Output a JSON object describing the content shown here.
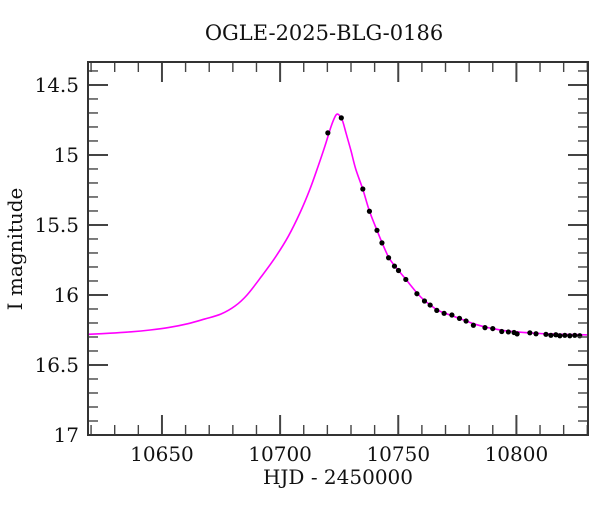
{
  "figure": {
    "title": "OGLE-2025-BLG-0186",
    "background_color": "#ffffff",
    "frame_color": "#333333",
    "text_color": "#111111"
  },
  "chart_data": {
    "type": "line",
    "title": "OGLE-2025-BLG-0186",
    "xlabel": "HJD - 2450000",
    "ylabel": "I magnitude",
    "x_axis": {
      "min": 10618.7,
      "max": 10830.3,
      "major_ticks": [
        10650,
        10700,
        10750,
        10800
      ],
      "tick_labels": [
        "10650",
        "10700",
        "10750",
        "10800"
      ],
      "minor_step": 10
    },
    "y_axis": {
      "inverted": true,
      "top_value": 14.336,
      "bottom_value": 17.0,
      "major_ticks": [
        14.5,
        15,
        15.5,
        16,
        16.5,
        17
      ],
      "tick_labels": [
        "14.5",
        "15",
        "15.5",
        "16",
        "16.5",
        "17"
      ],
      "minor_step": 0.1
    },
    "grid": false,
    "legend": null,
    "event": {
      "baseline_I_mag": 16.29,
      "peak_I_mag": 14.71,
      "peak_time_hjd": 10724.2
    },
    "series": [
      {
        "name": "model",
        "type": "line",
        "color": "#ff00ff",
        "stroke_width": 1.6,
        "points": [
          [
            10618.7,
            16.281
          ],
          [
            10628,
            16.273
          ],
          [
            10637,
            16.263
          ],
          [
            10645,
            16.25
          ],
          [
            10653,
            16.232
          ],
          [
            10661,
            16.205
          ],
          [
            10668,
            16.172
          ],
          [
            10675,
            16.136
          ],
          [
            10681,
            16.078
          ],
          [
            10686,
            16.0
          ],
          [
            10692,
            15.87
          ],
          [
            10698,
            15.73
          ],
          [
            10703.5,
            15.58
          ],
          [
            10708.5,
            15.41
          ],
          [
            10712.5,
            15.25
          ],
          [
            10716,
            15.085
          ],
          [
            10719,
            14.935
          ],
          [
            10721.5,
            14.8
          ],
          [
            10723.2,
            14.728
          ],
          [
            10724.2,
            14.708
          ],
          [
            10725.3,
            14.722
          ],
          [
            10726.5,
            14.76
          ],
          [
            10728,
            14.85
          ],
          [
            10730,
            14.97
          ],
          [
            10732,
            15.1
          ],
          [
            10735,
            15.245
          ],
          [
            10737.8,
            15.4
          ],
          [
            10741,
            15.538
          ],
          [
            10743.1,
            15.625
          ],
          [
            10745.9,
            15.73
          ],
          [
            10748.4,
            15.79
          ],
          [
            10750.1,
            15.825
          ],
          [
            10753.2,
            15.888
          ],
          [
            10757.9,
            15.985
          ],
          [
            10761.1,
            16.04
          ],
          [
            10763.5,
            16.07
          ],
          [
            10766.3,
            16.105
          ],
          [
            10769.4,
            16.128
          ],
          [
            10772.7,
            16.148
          ],
          [
            10775.9,
            16.168
          ],
          [
            10778.7,
            16.185
          ],
          [
            10781.8,
            16.205
          ],
          [
            10786.7,
            16.228
          ],
          [
            10790,
            16.24
          ],
          [
            10794,
            16.252
          ],
          [
            10797,
            16.258
          ],
          [
            10800,
            16.263
          ],
          [
            10805,
            16.27
          ],
          [
            10810,
            16.275
          ],
          [
            10815,
            16.278
          ],
          [
            10820,
            16.281
          ],
          [
            10825,
            16.283
          ],
          [
            10830.3,
            16.285
          ]
        ]
      },
      {
        "name": "observations",
        "type": "scatter",
        "color": "#000000",
        "marker_radius": 2.6,
        "points": [
          [
            10720.2,
            14.842
          ],
          [
            10725.9,
            14.735
          ],
          [
            10735.0,
            15.243
          ],
          [
            10737.8,
            15.402
          ],
          [
            10741.0,
            15.538
          ],
          [
            10743.1,
            15.628
          ],
          [
            10745.9,
            15.734
          ],
          [
            10748.4,
            15.794
          ],
          [
            10750.1,
            15.825
          ],
          [
            10753.2,
            15.889
          ],
          [
            10757.9,
            15.991
          ],
          [
            10761.1,
            16.043
          ],
          [
            10763.5,
            16.072
          ],
          [
            10766.3,
            16.11
          ],
          [
            10769.4,
            16.131
          ],
          [
            10772.7,
            16.143
          ],
          [
            10775.9,
            16.167
          ],
          [
            10778.7,
            16.186
          ],
          [
            10781.8,
            16.216
          ],
          [
            10786.7,
            16.233
          ],
          [
            10790.0,
            16.24
          ],
          [
            10793.8,
            16.261
          ],
          [
            10796.6,
            16.264
          ],
          [
            10799.0,
            16.268
          ],
          [
            10800.3,
            16.278
          ],
          [
            10805.7,
            16.27
          ],
          [
            10808.3,
            16.277
          ],
          [
            10812.5,
            16.281
          ],
          [
            10814.6,
            16.288
          ],
          [
            10816.7,
            16.284
          ],
          [
            10818.4,
            16.291
          ],
          [
            10820.5,
            16.288
          ],
          [
            10822.6,
            16.291
          ],
          [
            10824.7,
            16.288
          ],
          [
            10826.8,
            16.291
          ]
        ]
      }
    ]
  }
}
